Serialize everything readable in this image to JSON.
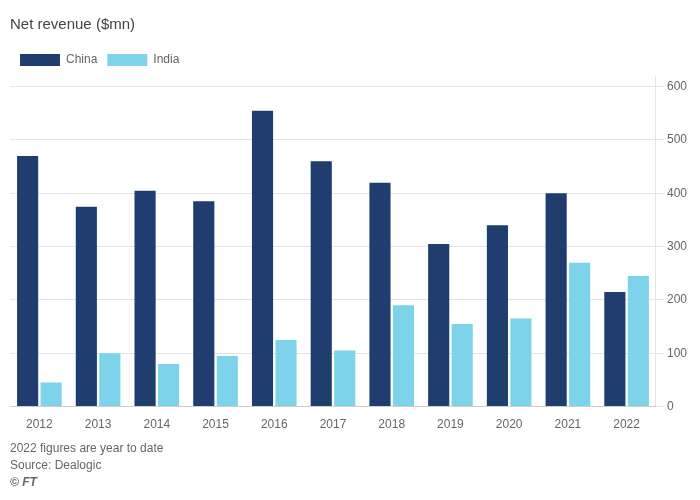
{
  "chart_data": {
    "type": "bar",
    "title": "Net revenue ($mn)",
    "categories": [
      "2012",
      "2013",
      "2014",
      "2015",
      "2016",
      "2017",
      "2018",
      "2019",
      "2020",
      "2021",
      "2022"
    ],
    "series": [
      {
        "name": "China",
        "color": "#1f3d6e",
        "values": [
          470,
          375,
          405,
          385,
          555,
          460,
          420,
          305,
          340,
          400,
          215
        ]
      },
      {
        "name": "India",
        "color": "#7dd4ea",
        "values": [
          45,
          100,
          80,
          95,
          125,
          105,
          190,
          155,
          165,
          270,
          245
        ]
      }
    ],
    "ylim": [
      0,
      620
    ],
    "yticks": [
      0,
      100,
      200,
      300,
      400,
      500,
      600
    ],
    "grid": true,
    "legend": "upper left",
    "annotations": [
      "2022 figures are year to date",
      "Source: Dealogic",
      "© FT"
    ]
  }
}
